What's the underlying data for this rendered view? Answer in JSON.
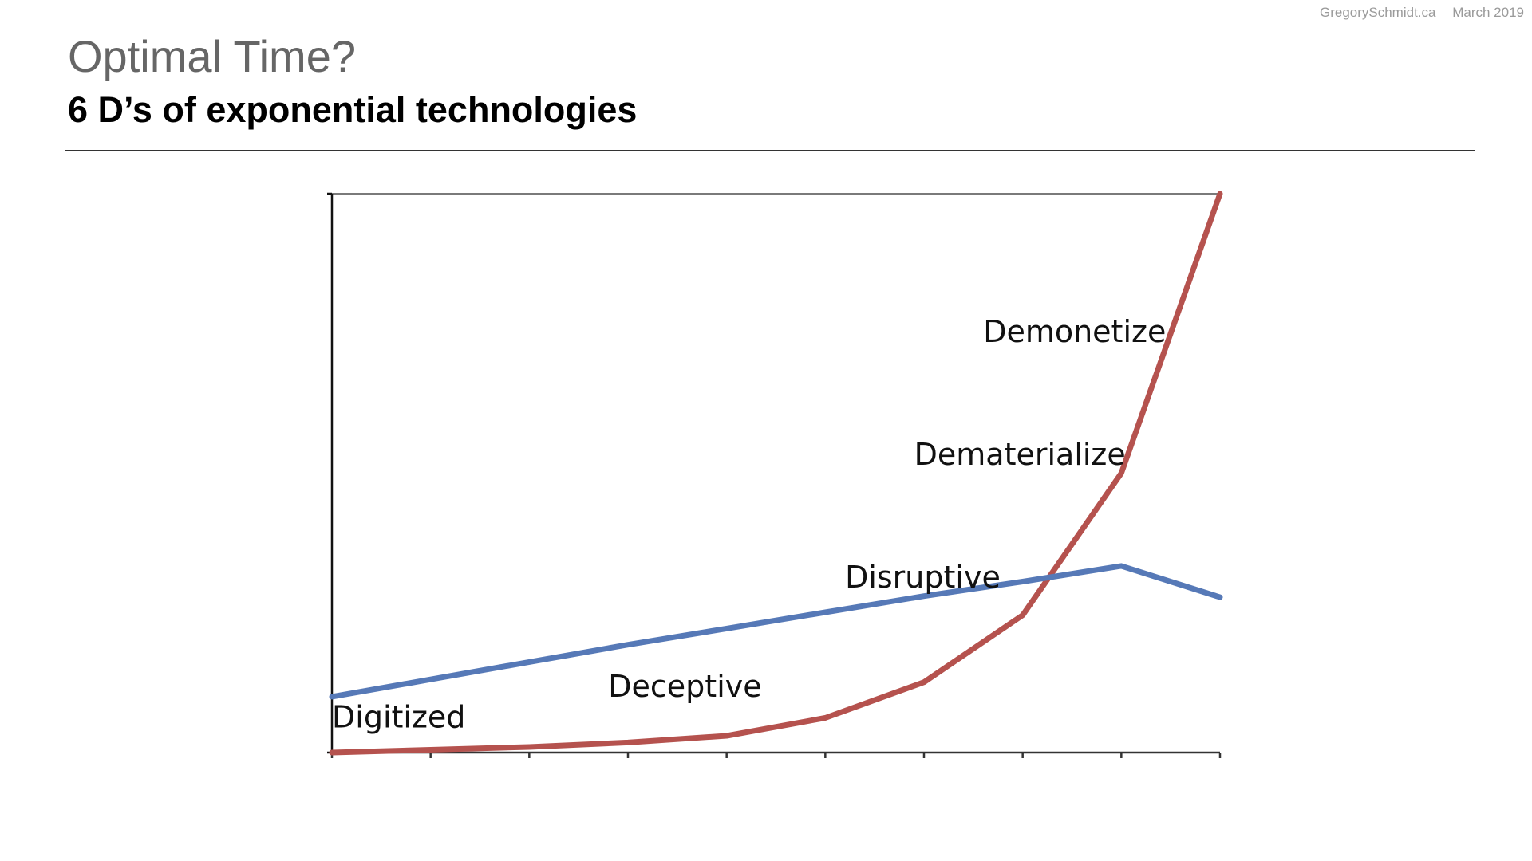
{
  "header": {
    "site": "GregorySchmidt.ca",
    "date": "March 2019"
  },
  "slide": {
    "title": "Optimal Time?",
    "subtitle": "6 D’s of exponential technologies"
  },
  "chart_data": {
    "type": "line",
    "title": "",
    "xlabel": "",
    "ylabel": "",
    "x": [
      0,
      1,
      2,
      3,
      4,
      5,
      6,
      7,
      8,
      9
    ],
    "xlim": [
      0,
      9
    ],
    "ylim": [
      0,
      100
    ],
    "grid": false,
    "legend": "none",
    "series": [
      {
        "color": "#b5524e",
        "values": [
          0,
          0.5,
          1,
          1.8,
          3,
          6.2,
          12.6,
          24.6,
          50,
          100
        ]
      },
      {
        "color": "#5679b7",
        "values": [
          10,
          13.1,
          16.2,
          19.3,
          22.2,
          25.1,
          28,
          30.6,
          33.4,
          27.8
        ]
      }
    ],
    "annotations": [
      {
        "text": "Digitized",
        "x": 0,
        "y": 4.5
      },
      {
        "text": "Deceptive",
        "x": 2.8,
        "y": 10
      },
      {
        "text": "Disruptive",
        "x": 5.2,
        "y": 29.5
      },
      {
        "text": "Dematerialize",
        "x": 5.9,
        "y": 51.5
      },
      {
        "text": "Demonetize",
        "x": 6.6,
        "y": 73.5
      }
    ]
  }
}
